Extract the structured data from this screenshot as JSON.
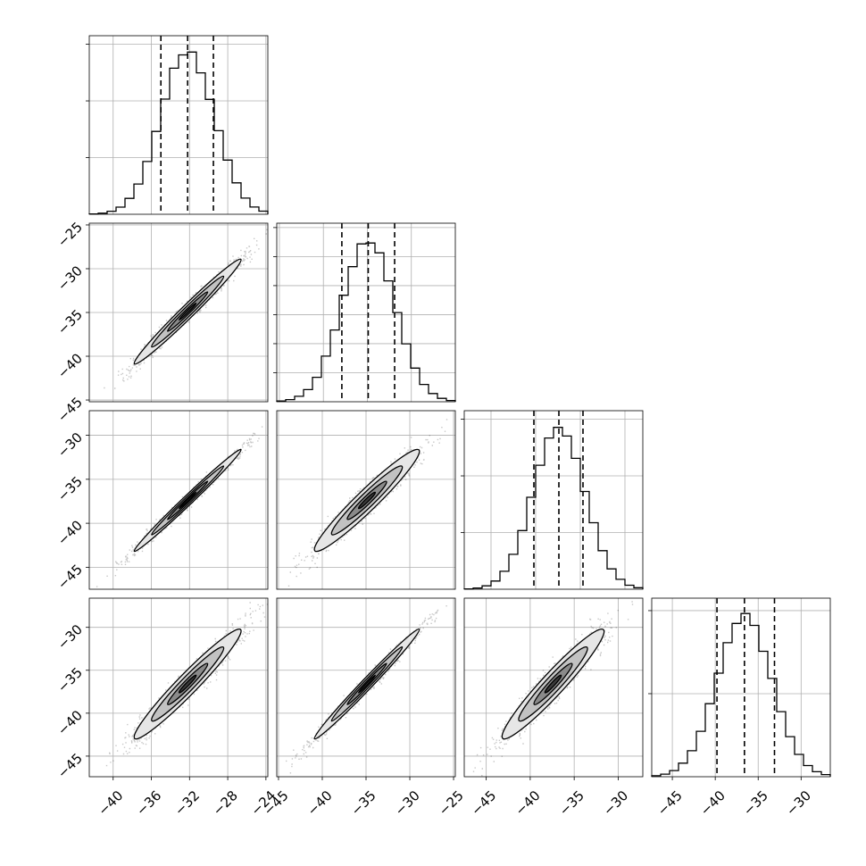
{
  "chart_data": {
    "type": "corner",
    "title": "",
    "n_params": 4,
    "parameters": [
      {
        "label": "",
        "mean": -32.2,
        "sd": 2.8,
        "hist_lim": [
          -42.5,
          -23.8
        ],
        "scatter_lim": [
          -42.5,
          -23.8
        ],
        "quantiles": [
          -35.0,
          -32.2,
          -29.5
        ],
        "scatter_ticks": [
          -40,
          -36,
          -32,
          -28,
          -24
        ]
      },
      {
        "label": "",
        "mean": -34.9,
        "sd": 3.0,
        "hist_lim": [
          -45.3,
          -25.0
        ],
        "scatter_lim": [
          -45.2,
          -24.8
        ],
        "quantiles": [
          -37.9,
          -34.9,
          -31.9
        ],
        "scatter_ticks": [
          -45,
          -40,
          -35,
          -30,
          -25
        ]
      },
      {
        "label": "",
        "mean": -37.4,
        "sd": 2.9,
        "hist_lim": [
          -48.0,
          -28.0
        ],
        "scatter_lim": [
          -47.5,
          -27.2
        ],
        "quantiles": [
          -40.2,
          -37.4,
          -34.7
        ],
        "scatter_ticks": [
          -45,
          -40,
          -35,
          -30
        ]
      },
      {
        "label": "",
        "mean": -36.6,
        "sd": 3.2,
        "hist_lim": [
          -47.4,
          -26.6
        ],
        "scatter_lim": [
          -47.4,
          -26.6
        ],
        "quantiles": [
          -39.8,
          -36.6,
          -33.1
        ],
        "scatter_ticks": [
          -45,
          -40,
          -35,
          -30
        ]
      }
    ],
    "correlation": [
      [
        1.0,
        0.985,
        0.992,
        0.965
      ],
      [
        0.985,
        1.0,
        0.96,
        0.99
      ],
      [
        0.992,
        0.96,
        1.0,
        0.955
      ],
      [
        0.965,
        0.99,
        0.955,
        1.0
      ]
    ],
    "diagonal_tick_counts": [
      3,
      6,
      3,
      2
    ],
    "quantile_levels": [
      0.16,
      0.5,
      0.84
    ],
    "hist_bins": 20,
    "grid": true,
    "y_tick_labels": [
      [],
      [
        "-25",
        "-30",
        "-35",
        "-40",
        "-45"
      ],
      [
        "-30",
        "-35",
        "-40",
        "-45"
      ],
      [
        "-30",
        "-35",
        "-40",
        "-45"
      ]
    ],
    "y_tick_values": [
      [],
      [
        -25,
        -30,
        -35,
        -40,
        -45
      ],
      [
        -30,
        -35,
        -40,
        -45
      ],
      [
        -30,
        -35,
        -40,
        -45
      ]
    ],
    "x_tick_labels": [
      [
        "-40",
        "-36",
        "-32",
        "-28",
        "-24"
      ],
      [
        "-45",
        "-40",
        "-35",
        "-30",
        "-25"
      ],
      [
        "-45",
        "-40",
        "-35",
        "-30"
      ],
      [
        "-45",
        "-40",
        "-35",
        "-30"
      ]
    ],
    "x_tick_values": [
      [
        -40,
        -36,
        -32,
        -28,
        -24
      ],
      [
        -45,
        -40,
        -35,
        -30,
        -25
      ],
      [
        -45,
        -40,
        -35,
        -30
      ],
      [
        -45,
        -40,
        -35,
        -30
      ]
    ],
    "colors": {
      "points": "#000000",
      "fill_inner": "#8a8a8a",
      "fill_outer": "#e6e6e6",
      "line": "#000000",
      "grid": "#b0b0b0"
    }
  }
}
